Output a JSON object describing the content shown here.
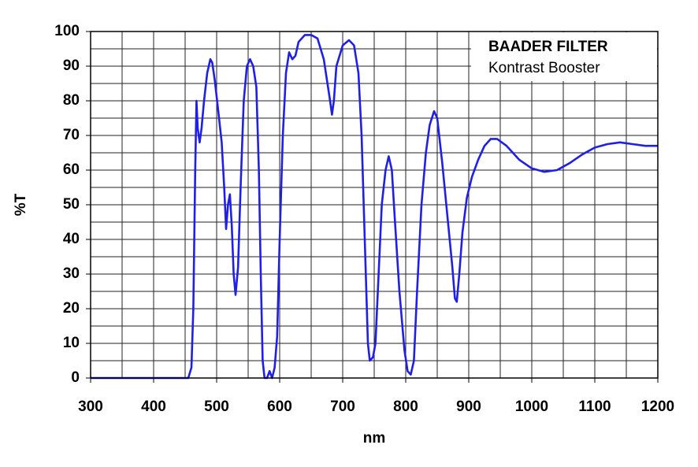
{
  "chart_data": {
    "type": "line",
    "title": "BAADER FILTER",
    "subtitle": "Kontrast Booster",
    "xlabel": "nm",
    "ylabel": "%T",
    "color": "#1f1fe6",
    "x": [
      300,
      455,
      460,
      463,
      466,
      468,
      470,
      473,
      476,
      480,
      485,
      490,
      493,
      497,
      502,
      508,
      512,
      515,
      518,
      521,
      524,
      527,
      530,
      534,
      538,
      543,
      548,
      553,
      558,
      563,
      567,
      570,
      573,
      576,
      580,
      584,
      588,
      592,
      596,
      600,
      605,
      610,
      615,
      620,
      625,
      630,
      640,
      650,
      660,
      670,
      680,
      683,
      686,
      690,
      700,
      710,
      718,
      725,
      730,
      735,
      740,
      743,
      748,
      752,
      757,
      762,
      768,
      773,
      778,
      783,
      790,
      798,
      803,
      808,
      813,
      818,
      825,
      832,
      838,
      845,
      850,
      858,
      866,
      874,
      878,
      881,
      885,
      890,
      897,
      905,
      915,
      925,
      935,
      945,
      960,
      980,
      1000,
      1020,
      1040,
      1060,
      1080,
      1100,
      1120,
      1140,
      1160,
      1180,
      1200
    ],
    "values": [
      0,
      0,
      3,
      20,
      60,
      80,
      72,
      68,
      72,
      80,
      88,
      92,
      91,
      86,
      78,
      68,
      55,
      43,
      50,
      53,
      44,
      30,
      24,
      32,
      55,
      80,
      90,
      92,
      90,
      84,
      60,
      30,
      5,
      0,
      0,
      2,
      0,
      3,
      12,
      40,
      70,
      88,
      94,
      92,
      93,
      97,
      99,
      99,
      98,
      92,
      80,
      76,
      80,
      90,
      96,
      97.5,
      96,
      88,
      70,
      40,
      10,
      5,
      6,
      10,
      30,
      50,
      60,
      64,
      60,
      45,
      25,
      8,
      2,
      1,
      5,
      25,
      50,
      65,
      73,
      77,
      75,
      62,
      47,
      32,
      23,
      22,
      30,
      42,
      52,
      58,
      63,
      67,
      69,
      69,
      67,
      63,
      60.5,
      59.5,
      60,
      62,
      64.5,
      66.5,
      67.5,
      68,
      67.5,
      67,
      67
    ],
    "xlim": [
      300,
      1200
    ],
    "ylim": [
      0,
      100
    ],
    "xticks": [
      300,
      400,
      500,
      600,
      700,
      800,
      900,
      1000,
      1100,
      1200
    ],
    "yticks": [
      0,
      10,
      20,
      30,
      40,
      50,
      60,
      70,
      80,
      90,
      100
    ],
    "xminor_ticks": [
      350,
      450,
      550,
      650,
      750,
      850,
      950,
      1050,
      1150
    ],
    "yminor_ticks": [
      5,
      15,
      25,
      35,
      45,
      55,
      65,
      75,
      85,
      95
    ],
    "grid": true
  }
}
